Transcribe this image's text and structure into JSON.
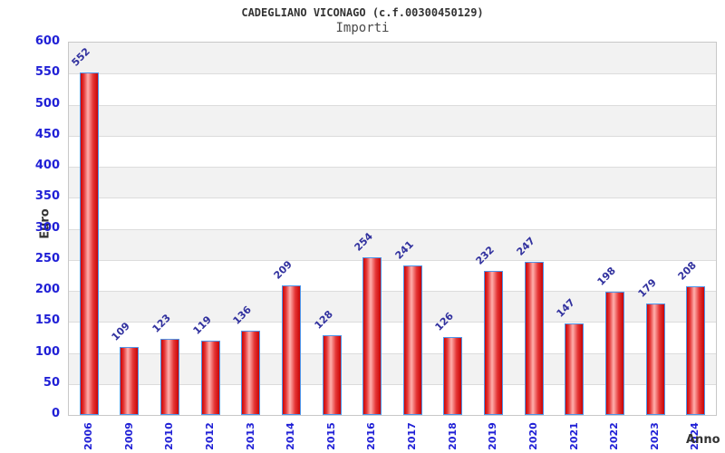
{
  "chart_data": {
    "type": "bar",
    "title": "CADEGLIANO VICONAGO (c.f.00300450129)",
    "subtitle": "Importi",
    "xlabel": "Anno",
    "ylabel": "Euro",
    "categories": [
      "2006",
      "2009",
      "2010",
      "2012",
      "2013",
      "2014",
      "2015",
      "2016",
      "2017",
      "2018",
      "2019",
      "2020",
      "2021",
      "2022",
      "2023",
      "2024"
    ],
    "values": [
      552,
      109,
      123,
      119,
      136,
      209,
      128,
      254,
      241,
      126,
      232,
      247,
      147,
      198,
      179,
      208
    ],
    "ylim": [
      0,
      600
    ],
    "yticks": [
      600,
      550,
      500,
      450,
      400,
      350,
      300,
      250,
      200,
      150,
      100,
      50,
      0
    ],
    "grid": true,
    "legend": "none",
    "band_fill": [
      "#f2f2f2",
      "#ffffff"
    ],
    "colors": {
      "bar_edge": "#4e95ea",
      "bar_dark": "#cc0505",
      "bar_highlight": "#ffb0ad",
      "tick_label": "#2020d6",
      "value_label": "#30309e",
      "grid_line": "#dcdcdc",
      "plot_border": "#c8c8c8",
      "axis_title_text": "#333333",
      "title_text": "#333333"
    }
  }
}
